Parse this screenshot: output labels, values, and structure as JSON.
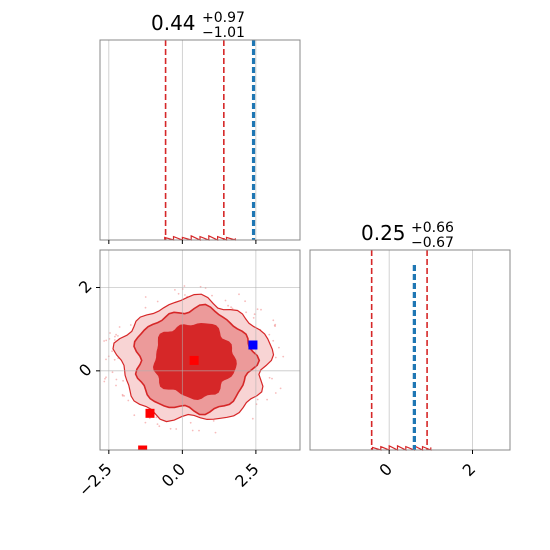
{
  "chart_data": [
    {
      "type": "histogram",
      "panel": "top-left",
      "title": {
        "value": "0.44",
        "plus": "+0.97",
        "minus": "−1.01"
      },
      "xlim": [
        -2.8,
        4.0
      ],
      "xticks": [
        -2.5,
        0.0,
        2.5
      ],
      "grid": true,
      "quantile_lines": [
        -0.57,
        1.41
      ],
      "quantile_color": "#d62728",
      "truth_lines": [
        2.4,
        2.44
      ],
      "truth_color": "#1f77b4",
      "hist_x": [
        -0.6,
        -0.3,
        0.0,
        0.3,
        0.6,
        0.9,
        1.2,
        1.5,
        1.8
      ],
      "hist_y": [
        0.01,
        0.015,
        0.01,
        0.02,
        0.015,
        0.02,
        0.015,
        0.01,
        0.005
      ]
    },
    {
      "type": "histogram",
      "panel": "bottom-right",
      "title": {
        "value": "0.25",
        "plus": "+0.66",
        "minus": "−0.67"
      },
      "xlim": [
        -1.9,
        2.9
      ],
      "xticks": [
        0,
        2
      ],
      "xtick_labels": [
        "0",
        "2"
      ],
      "grid": true,
      "quantile_lines": [
        -0.42,
        0.91
      ],
      "quantile_color": "#d62728",
      "truth_lines": [
        0.59,
        0.62
      ],
      "truth_color": "#1f77b4",
      "hist_x": [
        -0.4,
        -0.2,
        0.0,
        0.2,
        0.4,
        0.6,
        0.8,
        1.0
      ],
      "hist_y": [
        0.01,
        0.015,
        0.02,
        0.02,
        0.015,
        0.02,
        0.015,
        0.01
      ]
    },
    {
      "type": "contour",
      "panel": "bottom-left",
      "xlim": [
        -2.8,
        4.0
      ],
      "ylim": [
        -1.9,
        2.9
      ],
      "xticks": [
        -2.5,
        0.0,
        2.5
      ],
      "xtick_labels": [
        "−2.5",
        "0.0",
        "2.5"
      ],
      "yticks": [
        0,
        2
      ],
      "ytick_labels": [
        "0",
        "2"
      ],
      "grid": true,
      "center": [
        0.4,
        0.25
      ],
      "levels": [
        {
          "rx": 1.35,
          "ry": 0.88,
          "fill": "#d62728"
        },
        {
          "rx": 2.0,
          "ry": 1.23,
          "fill": "#ec9a9a"
        },
        {
          "rx": 2.55,
          "ry": 1.45,
          "fill": "#f8d4d4"
        }
      ],
      "contour_color": "#d62728",
      "red_markers": [
        [
          0.4,
          0.25
        ],
        [
          -1.1,
          -1.02
        ],
        [
          -1.35,
          -1.9
        ]
      ],
      "blue_marker": [
        2.4,
        0.62
      ],
      "marker_red": "#ff0000",
      "marker_blue": "#0000ff"
    }
  ]
}
